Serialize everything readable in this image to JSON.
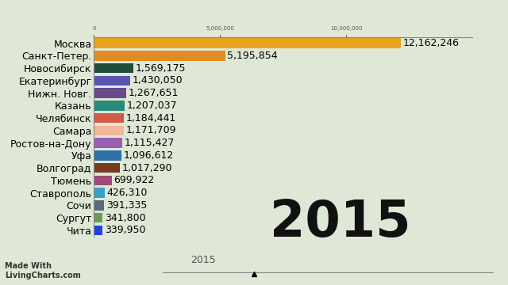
{
  "chart_data": {
    "type": "bar",
    "orientation": "horizontal",
    "data_labels": true,
    "categories": [
      "Москва",
      "Санкт-Петер.",
      "Новосибирск",
      "Екатеринбург",
      "Нижн. Новг.",
      "Казань",
      "Челябинск",
      "Самара",
      "Ростов-на-Дону",
      "Уфа",
      "Волгоград",
      "Тюмень",
      "Ставрополь",
      "Сочи",
      "Сургут",
      "Чита"
    ],
    "values": [
      12162246,
      5195854,
      1569175,
      1430050,
      1267651,
      1207037,
      1184441,
      1171709,
      1115427,
      1096612,
      1017290,
      699922,
      426310,
      391335,
      341800,
      339950
    ],
    "value_labels": [
      "12,162,246",
      "5,195,854",
      "1,569,175",
      "1,430,050",
      "1,267,651",
      "1,207,037",
      "1,184,441",
      "1,171,709",
      "1,115,427",
      "1,096,612",
      "1,017,290",
      "699,922",
      "426,310",
      "391,335",
      "341,800",
      "339,950"
    ],
    "colors": [
      "#e8a21c",
      "#e08b28",
      "#1e4d3a",
      "#5a55b0",
      "#6b4a8c",
      "#2a8a7a",
      "#d05a45",
      "#f0b89a",
      "#9a5fb0",
      "#2f6fa8",
      "#7a3a1e",
      "#a04a78",
      "#3aa0c8",
      "#5a6a78",
      "#6a9a5a",
      "#2040e8"
    ],
    "xlim": [
      0,
      15000000
    ],
    "xticks": [
      0,
      {
        "value": 5000000,
        "label": "5,000,000"
      },
      {
        "value": 10000000,
        "label": "10,000,000"
      }
    ],
    "year_label": "2015",
    "timeline_label": "2015",
    "watermark": "Made With\nLivingCharts.com"
  }
}
